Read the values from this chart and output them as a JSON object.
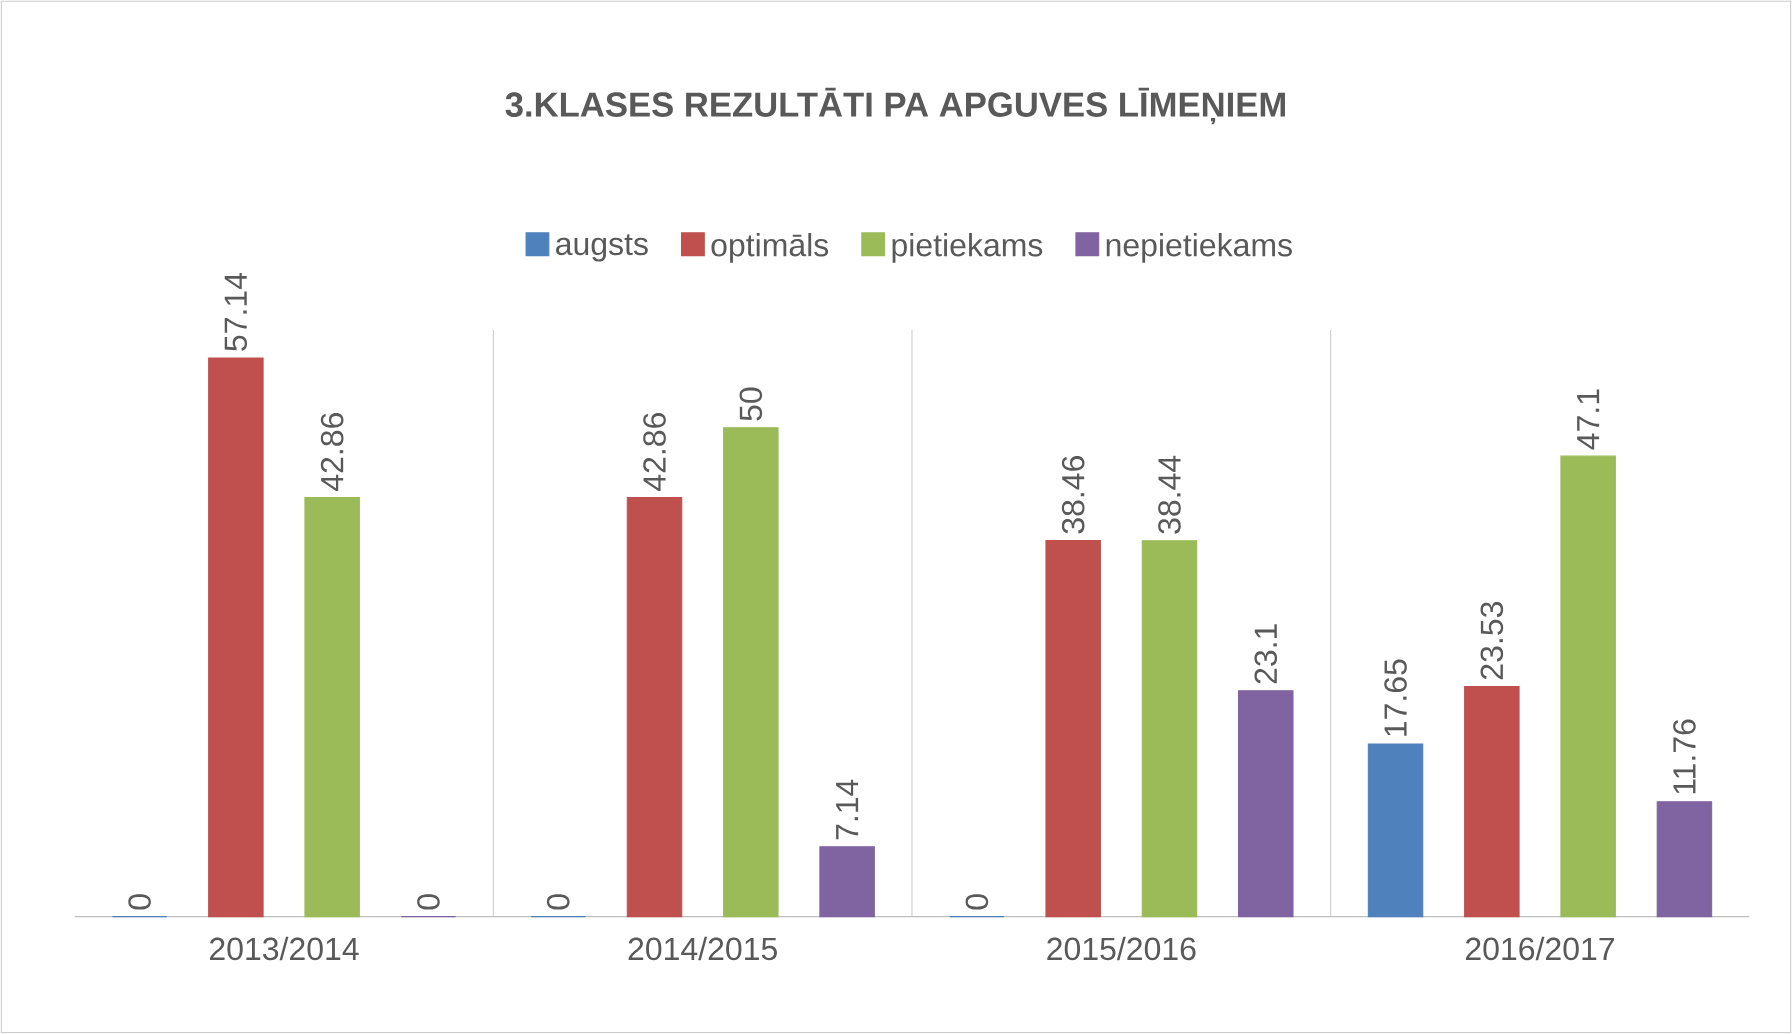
{
  "chart_data": {
    "type": "bar",
    "title": "3.KLASES REZULTĀTI PA APGUVES LĪMEŅIEM",
    "categories": [
      "2013/2014",
      "2014/2015",
      "2015/2016",
      "2016/2017"
    ],
    "series": [
      {
        "name": "augsts",
        "color": "#4f81bd",
        "values": [
          0,
          0,
          0,
          17.65
        ]
      },
      {
        "name": "optimāls",
        "color": "#c0504d",
        "values": [
          57.14,
          42.86,
          38.46,
          23.53
        ]
      },
      {
        "name": "pietiekams",
        "color": "#9bbb59",
        "values": [
          42.86,
          50,
          38.44,
          47.1
        ]
      },
      {
        "name": "nepietiekams",
        "color": "#8064a2",
        "values": [
          0,
          7.14,
          23.1,
          11.76
        ]
      }
    ],
    "ylim": [
      0,
      60
    ],
    "tick_labels": "x",
    "grid": "x",
    "legend": "top",
    "data_labels": true
  }
}
